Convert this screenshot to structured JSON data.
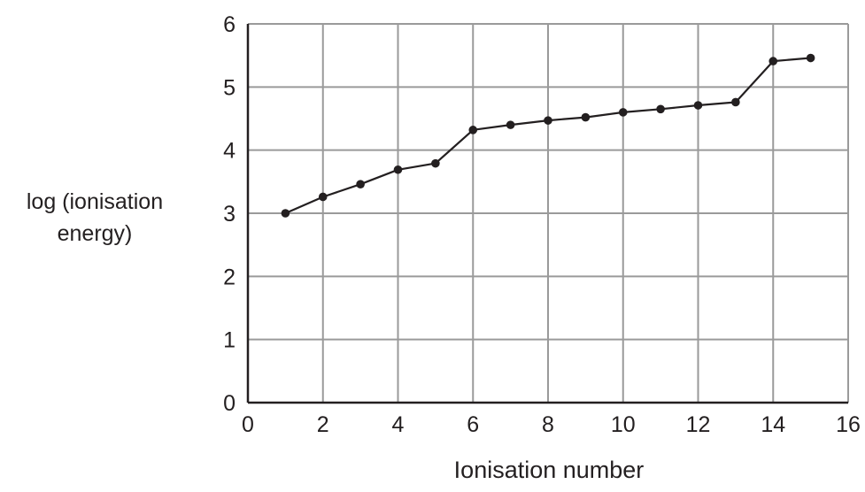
{
  "chart_data": {
    "type": "line",
    "title": "",
    "xlabel": "Ionisation number",
    "ylabel_lines": [
      "log (ionisation",
      "energy)"
    ],
    "xlim": [
      0,
      16
    ],
    "ylim": [
      0,
      6
    ],
    "x_ticks": [
      "0",
      "2",
      "4",
      "6",
      "8",
      "10",
      "12",
      "14",
      "16"
    ],
    "y_ticks": [
      "0",
      "1",
      "2",
      "3",
      "4",
      "5",
      "6"
    ],
    "grid": true,
    "colors": {
      "line": "#231f20",
      "grid": "#9a9a9a",
      "axis": "#231f20"
    },
    "series": [
      {
        "x": [
          1,
          2,
          3,
          4,
          5,
          6,
          7,
          8,
          9,
          10,
          11,
          12,
          13,
          14,
          15
        ],
        "y": [
          3.0,
          3.26,
          3.46,
          3.69,
          3.79,
          4.32,
          4.4,
          4.47,
          4.52,
          4.6,
          4.65,
          4.71,
          4.76,
          5.41,
          5.46
        ]
      }
    ]
  }
}
